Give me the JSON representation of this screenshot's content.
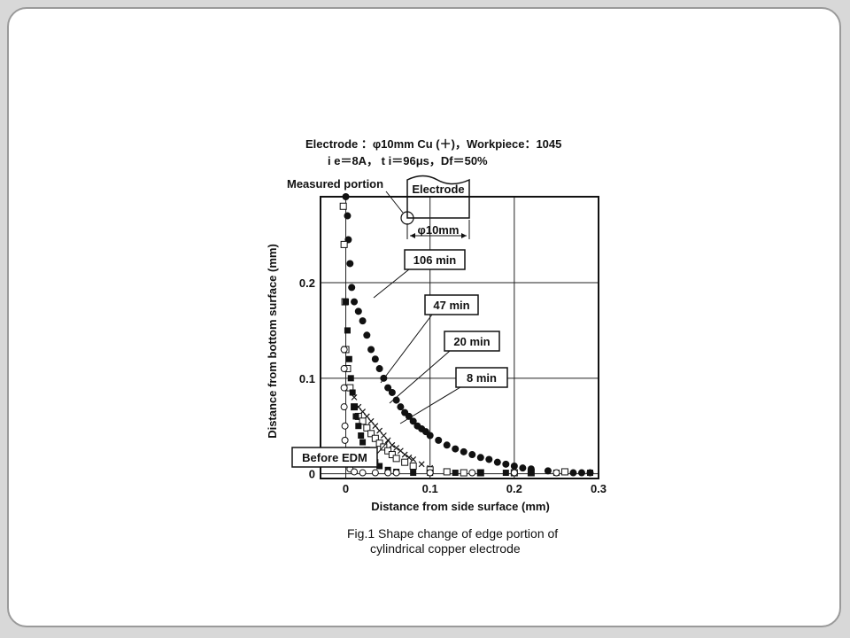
{
  "slide": {
    "header_line1": "Electrode ：φ10mm Cu (＋)，Workpiece：1045",
    "header_line2": "i e＝8A，  t i＝96μs，Df＝50%",
    "measured_portion": "Measured portion",
    "electrode_label": "Electrode",
    "diameter_label": "φ10mm",
    "caption_line1": "Fig.1  Shape change of edge portion of",
    "caption_line2": "cylindrical copper electrode"
  },
  "chart_data": {
    "type": "scatter",
    "xlabel": "Distance from side surface (mm)",
    "ylabel": "Distance from bottom surface (mm)",
    "xlim": [
      -0.03,
      0.3
    ],
    "ylim": [
      -0.005,
      0.29
    ],
    "xticks": [
      0,
      0.1,
      0.2,
      0.3
    ],
    "xtick_labels": [
      "0",
      "0.1",
      "0.2",
      "0.3"
    ],
    "yticks": [
      0,
      0.1,
      0.2
    ],
    "ytick_labels": [
      "0",
      "0.1",
      "0.2"
    ],
    "grid": true,
    "series": [
      {
        "name": "106 min",
        "marker": "filled-circle",
        "points": [
          [
            0.0,
            0.29
          ],
          [
            0.002,
            0.27
          ],
          [
            0.003,
            0.245
          ],
          [
            0.005,
            0.22
          ],
          [
            0.007,
            0.195
          ],
          [
            0.01,
            0.18
          ],
          [
            0.015,
            0.17
          ],
          [
            0.02,
            0.16
          ],
          [
            0.025,
            0.145
          ],
          [
            0.03,
            0.13
          ],
          [
            0.035,
            0.12
          ],
          [
            0.04,
            0.11
          ],
          [
            0.045,
            0.1
          ],
          [
            0.05,
            0.09
          ],
          [
            0.055,
            0.085
          ],
          [
            0.06,
            0.077
          ],
          [
            0.065,
            0.07
          ],
          [
            0.07,
            0.064
          ],
          [
            0.075,
            0.06
          ],
          [
            0.08,
            0.055
          ],
          [
            0.085,
            0.05
          ],
          [
            0.09,
            0.047
          ],
          [
            0.095,
            0.044
          ],
          [
            0.1,
            0.04
          ],
          [
            0.11,
            0.035
          ],
          [
            0.12,
            0.03
          ],
          [
            0.13,
            0.026
          ],
          [
            0.14,
            0.023
          ],
          [
            0.15,
            0.02
          ],
          [
            0.16,
            0.017
          ],
          [
            0.17,
            0.015
          ],
          [
            0.18,
            0.012
          ],
          [
            0.19,
            0.01
          ],
          [
            0.2,
            0.008
          ],
          [
            0.21,
            0.006
          ],
          [
            0.22,
            0.005
          ],
          [
            0.24,
            0.003
          ],
          [
            0.26,
            0.002
          ],
          [
            0.27,
            0.001
          ],
          [
            0.28,
            0.001
          ],
          [
            0.29,
            0.001
          ]
        ]
      },
      {
        "name": "47 min",
        "marker": "cross",
        "points": [
          [
            0.01,
            0.08
          ],
          [
            0.015,
            0.07
          ],
          [
            0.02,
            0.065
          ],
          [
            0.025,
            0.06
          ],
          [
            0.03,
            0.055
          ],
          [
            0.035,
            0.05
          ],
          [
            0.04,
            0.045
          ],
          [
            0.045,
            0.04
          ],
          [
            0.05,
            0.035
          ],
          [
            0.055,
            0.03
          ],
          [
            0.06,
            0.027
          ],
          [
            0.065,
            0.024
          ],
          [
            0.07,
            0.02
          ],
          [
            0.075,
            0.017
          ],
          [
            0.08,
            0.015
          ],
          [
            0.09,
            0.01
          ],
          [
            0.1,
            0.006
          ]
        ]
      },
      {
        "name": "20 min",
        "marker": "open-square",
        "points": [
          [
            -0.003,
            0.28
          ],
          [
            -0.002,
            0.24
          ],
          [
            -0.001,
            0.18
          ],
          [
            0.0,
            0.13
          ],
          [
            0.002,
            0.11
          ],
          [
            0.005,
            0.09
          ],
          [
            0.01,
            0.07
          ],
          [
            0.015,
            0.06
          ],
          [
            0.02,
            0.055
          ],
          [
            0.025,
            0.048
          ],
          [
            0.03,
            0.042
          ],
          [
            0.035,
            0.037
          ],
          [
            0.04,
            0.032
          ],
          [
            0.045,
            0.028
          ],
          [
            0.05,
            0.024
          ],
          [
            0.055,
            0.02
          ],
          [
            0.06,
            0.016
          ],
          [
            0.07,
            0.012
          ],
          [
            0.08,
            0.008
          ],
          [
            0.1,
            0.004
          ],
          [
            0.12,
            0.002
          ],
          [
            0.14,
            0.001
          ],
          [
            0.16,
            0.001
          ],
          [
            0.2,
            0.001
          ],
          [
            0.22,
            0.001
          ],
          [
            0.26,
            0.002
          ]
        ]
      },
      {
        "name": "8 min",
        "marker": "filled-square",
        "points": [
          [
            0.0,
            0.18
          ],
          [
            0.002,
            0.15
          ],
          [
            0.004,
            0.12
          ],
          [
            0.006,
            0.1
          ],
          [
            0.008,
            0.085
          ],
          [
            0.01,
            0.07
          ],
          [
            0.012,
            0.06
          ],
          [
            0.015,
            0.05
          ],
          [
            0.018,
            0.04
          ],
          [
            0.02,
            0.033
          ],
          [
            0.025,
            0.025
          ],
          [
            0.03,
            0.018
          ],
          [
            0.035,
            0.012
          ],
          [
            0.04,
            0.008
          ],
          [
            0.05,
            0.004
          ],
          [
            0.06,
            0.002
          ],
          [
            0.08,
            0.001
          ],
          [
            0.1,
            0.001
          ],
          [
            0.13,
            0.001
          ],
          [
            0.16,
            0.001
          ],
          [
            0.19,
            0.001
          ],
          [
            0.22,
            0.001
          ],
          [
            0.25,
            0.001
          ],
          [
            0.29,
            0.001
          ]
        ]
      },
      {
        "name": "Before EDM",
        "marker": "open-circle",
        "points": [
          [
            -0.002,
            0.13
          ],
          [
            -0.002,
            0.11
          ],
          [
            -0.002,
            0.09
          ],
          [
            -0.002,
            0.07
          ],
          [
            -0.001,
            0.05
          ],
          [
            -0.001,
            0.035
          ],
          [
            0.0,
            0.02
          ],
          [
            0.002,
            0.01
          ],
          [
            0.005,
            0.005
          ],
          [
            0.01,
            0.002
          ],
          [
            0.02,
            0.001
          ],
          [
            0.035,
            0.001
          ],
          [
            0.05,
            0.001
          ],
          [
            0.06,
            0.001
          ],
          [
            0.1,
            0.001
          ],
          [
            0.15,
            0.001
          ],
          [
            0.2,
            0.001
          ],
          [
            0.25,
            0.001
          ]
        ]
      }
    ]
  }
}
